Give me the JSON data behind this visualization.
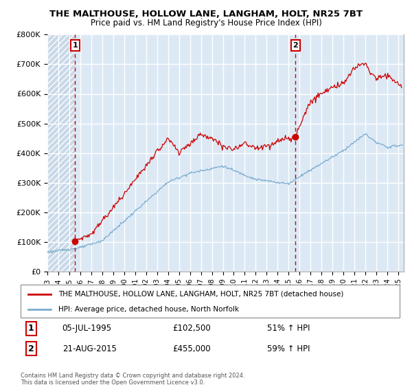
{
  "title": "THE MALTHOUSE, HOLLOW LANE, LANGHAM, HOLT, NR25 7BT",
  "subtitle": "Price paid vs. HM Land Registry's House Price Index (HPI)",
  "ylim": [
    0,
    800000
  ],
  "yticks": [
    0,
    100000,
    200000,
    300000,
    400000,
    500000,
    600000,
    700000,
    800000
  ],
  "ytick_labels": [
    "£0",
    "£100K",
    "£200K",
    "£300K",
    "£400K",
    "£500K",
    "£600K",
    "£700K",
    "£800K"
  ],
  "xlim_start": 1993.0,
  "xlim_end": 2025.5,
  "sale1_x": 1995.52,
  "sale1_y": 102500,
  "sale1_label": "1",
  "sale1_date": "05-JUL-1995",
  "sale1_price": "£102,500",
  "sale1_hpi": "51% ↑ HPI",
  "sale2_x": 2015.62,
  "sale2_y": 455000,
  "sale2_label": "2",
  "sale2_date": "21-AUG-2015",
  "sale2_price": "£455,000",
  "sale2_hpi": "59% ↑ HPI",
  "property_color": "#cc0000",
  "hpi_color": "#7aadcf",
  "vline_color": "#cc0000",
  "dot_color": "#cc0000",
  "plot_bg_color": "#dce9f5",
  "hatch_bg_color": "#c8d8e8",
  "grid_color": "#ffffff",
  "legend_property": "THE MALTHOUSE, HOLLOW LANE, LANGHAM, HOLT, NR25 7BT (detached house)",
  "legend_hpi": "HPI: Average price, detached house, North Norfolk",
  "footer": "Contains HM Land Registry data © Crown copyright and database right 2024.\nThis data is licensed under the Open Government Licence v3.0."
}
